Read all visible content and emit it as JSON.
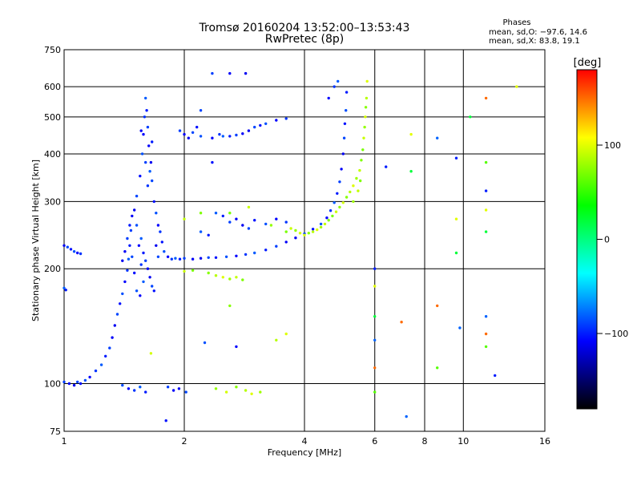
{
  "chart_data": {
    "type": "scatter",
    "title": "Tromsø 20160204 13:52:00–13:53:43",
    "subtitle": "RwPretec (8p)",
    "xlabel": "Frequency [MHz]",
    "ylabel": "Stationary phase Virtual Height [km]",
    "x_scale": "log",
    "y_scale": "log",
    "xlim": [
      1,
      16
    ],
    "ylim": [
      75,
      750
    ],
    "x_ticks": [
      1,
      2,
      4,
      6,
      8,
      10,
      16
    ],
    "y_ticks": [
      75,
      100,
      200,
      300,
      400,
      500,
      600,
      750
    ],
    "grid": true,
    "phase_stats": {
      "title": "Phases",
      "line1": "mean, sd,O: −97.6, 14.6",
      "line2": "mean, sd,X:  83.8, 19.1"
    },
    "colorbar": {
      "label": "[deg]",
      "range": [
        -180,
        180
      ],
      "ticks": [
        100,
        0,
        -100
      ],
      "tick_labels": [
        "100",
        "0",
        "−100"
      ],
      "colors": [
        "#ff0000",
        "#ffff00",
        "#00ff00",
        "#00ffff",
        "#0000ff",
        "#000000"
      ]
    },
    "series": [
      {
        "mode": "O",
        "phase_mean": -97.6,
        "points": [
          [
            1.0,
            230
          ],
          [
            1.02,
            228
          ],
          [
            1.04,
            225
          ],
          [
            1.06,
            222
          ],
          [
            1.08,
            220
          ],
          [
            1.1,
            219
          ],
          [
            1.0,
            178
          ],
          [
            1.01,
            176
          ],
          [
            1.0,
            101
          ],
          [
            1.03,
            100
          ],
          [
            1.06,
            99
          ],
          [
            1.08,
            101
          ],
          [
            1.1,
            100
          ],
          [
            1.13,
            102
          ],
          [
            1.16,
            104
          ],
          [
            1.2,
            108
          ],
          [
            1.24,
            112
          ],
          [
            1.27,
            118
          ],
          [
            1.3,
            124
          ],
          [
            1.32,
            132
          ],
          [
            1.34,
            142
          ],
          [
            1.36,
            152
          ],
          [
            1.38,
            162
          ],
          [
            1.4,
            172
          ],
          [
            1.42,
            185
          ],
          [
            1.44,
            198
          ],
          [
            1.45,
            212
          ],
          [
            1.46,
            230
          ],
          [
            1.47,
            252
          ],
          [
            1.48,
            275
          ],
          [
            1.5,
            285
          ],
          [
            1.52,
            310
          ],
          [
            1.55,
            350
          ],
          [
            1.57,
            400
          ],
          [
            1.58,
            450
          ],
          [
            1.59,
            500
          ],
          [
            1.6,
            560
          ],
          [
            1.61,
            520
          ],
          [
            1.62,
            470
          ],
          [
            1.63,
            420
          ],
          [
            1.65,
            380
          ],
          [
            1.66,
            340
          ],
          [
            1.68,
            300
          ],
          [
            1.7,
            280
          ],
          [
            1.72,
            260
          ],
          [
            1.74,
            250
          ],
          [
            1.56,
            240
          ],
          [
            1.58,
            220
          ],
          [
            1.6,
            210
          ],
          [
            1.62,
            200
          ],
          [
            1.64,
            190
          ],
          [
            1.66,
            180
          ],
          [
            1.68,
            175
          ],
          [
            1.52,
            260
          ],
          [
            1.54,
            230
          ],
          [
            1.56,
            205
          ],
          [
            1.58,
            185
          ],
          [
            1.46,
            260
          ],
          [
            1.44,
            240
          ],
          [
            1.42,
            222
          ],
          [
            1.4,
            210
          ],
          [
            1.48,
            215
          ],
          [
            1.5,
            195
          ],
          [
            1.52,
            175
          ],
          [
            1.55,
            170
          ],
          [
            1.62,
            330
          ],
          [
            1.64,
            360
          ],
          [
            1.66,
            430
          ],
          [
            1.6,
            380
          ],
          [
            1.56,
            460
          ],
          [
            1.7,
            230
          ],
          [
            1.72,
            215
          ],
          [
            1.76,
            235
          ],
          [
            1.78,
            222
          ],
          [
            1.82,
            215
          ],
          [
            1.86,
            212
          ],
          [
            1.9,
            213
          ],
          [
            1.95,
            212
          ],
          [
            2.0,
            213
          ],
          [
            2.1,
            212
          ],
          [
            2.2,
            213
          ],
          [
            2.3,
            214
          ],
          [
            2.4,
            214
          ],
          [
            2.55,
            215
          ],
          [
            2.7,
            216
          ],
          [
            2.85,
            218
          ],
          [
            3.0,
            220
          ],
          [
            3.2,
            224
          ],
          [
            3.4,
            229
          ],
          [
            3.6,
            235
          ],
          [
            3.8,
            241
          ],
          [
            4.0,
            247
          ],
          [
            4.2,
            254
          ],
          [
            4.4,
            262
          ],
          [
            4.55,
            272
          ],
          [
            4.65,
            284
          ],
          [
            4.75,
            298
          ],
          [
            4.83,
            315
          ],
          [
            4.9,
            338
          ],
          [
            4.95,
            365
          ],
          [
            5.0,
            400
          ],
          [
            5.03,
            440
          ],
          [
            5.05,
            480
          ],
          [
            5.08,
            520
          ],
          [
            4.6,
            560
          ],
          [
            4.75,
            600
          ],
          [
            4.85,
            620
          ],
          [
            5.1,
            580
          ],
          [
            1.95,
            460
          ],
          [
            2.0,
            450
          ],
          [
            2.05,
            440
          ],
          [
            2.1,
            455
          ],
          [
            2.15,
            470
          ],
          [
            2.2,
            445
          ],
          [
            2.35,
            440
          ],
          [
            2.45,
            450
          ],
          [
            2.5,
            445
          ],
          [
            2.6,
            445
          ],
          [
            2.7,
            448
          ],
          [
            2.8,
            452
          ],
          [
            2.9,
            460
          ],
          [
            3.0,
            470
          ],
          [
            3.1,
            475
          ],
          [
            3.2,
            480
          ],
          [
            3.4,
            490
          ],
          [
            3.6,
            495
          ],
          [
            2.4,
            280
          ],
          [
            2.5,
            275
          ],
          [
            2.6,
            265
          ],
          [
            2.7,
            270
          ],
          [
            2.8,
            260
          ],
          [
            2.9,
            255
          ],
          [
            3.0,
            268
          ],
          [
            3.2,
            262
          ],
          [
            3.4,
            270
          ],
          [
            3.6,
            265
          ],
          [
            2.2,
            250
          ],
          [
            2.3,
            245
          ],
          [
            2.35,
            650
          ],
          [
            2.6,
            650
          ],
          [
            2.85,
            650
          ],
          [
            2.2,
            520
          ],
          [
            2.35,
            380
          ],
          [
            1.4,
            99
          ],
          [
            1.45,
            97
          ],
          [
            1.5,
            96
          ],
          [
            1.55,
            98
          ],
          [
            1.6,
            95
          ],
          [
            1.82,
            98
          ],
          [
            1.88,
            96
          ],
          [
            1.94,
            97
          ],
          [
            2.02,
            95
          ],
          [
            1.8,
            80
          ],
          [
            2.25,
            128
          ],
          [
            2.7,
            125
          ]
        ]
      },
      {
        "mode": "X",
        "phase_mean": 83.8,
        "points": [
          [
            4.0,
            245
          ],
          [
            4.1,
            248
          ],
          [
            4.2,
            250
          ],
          [
            4.3,
            253
          ],
          [
            4.4,
            257
          ],
          [
            4.5,
            262
          ],
          [
            4.6,
            268
          ],
          [
            4.7,
            275
          ],
          [
            4.8,
            282
          ],
          [
            4.9,
            290
          ],
          [
            5.0,
            298
          ],
          [
            5.1,
            308
          ],
          [
            5.2,
            318
          ],
          [
            5.3,
            330
          ],
          [
            5.4,
            345
          ],
          [
            5.5,
            362
          ],
          [
            5.55,
            385
          ],
          [
            5.6,
            410
          ],
          [
            5.63,
            440
          ],
          [
            5.66,
            470
          ],
          [
            5.68,
            500
          ],
          [
            5.7,
            530
          ],
          [
            5.72,
            560
          ],
          [
            5.74,
            620
          ],
          [
            5.3,
            300
          ],
          [
            5.45,
            320
          ],
          [
            5.52,
            340
          ],
          [
            3.6,
            250
          ],
          [
            3.7,
            255
          ],
          [
            3.8,
            252
          ],
          [
            3.9,
            248
          ],
          [
            2.3,
            195
          ],
          [
            2.4,
            192
          ],
          [
            2.5,
            190
          ],
          [
            2.6,
            188
          ],
          [
            2.7,
            190
          ],
          [
            2.8,
            187
          ],
          [
            2.1,
            198
          ],
          [
            2.0,
            197
          ],
          [
            2.4,
            97
          ],
          [
            2.55,
            95
          ],
          [
            2.7,
            98
          ],
          [
            2.85,
            96
          ],
          [
            2.95,
            94
          ],
          [
            3.1,
            95
          ],
          [
            2.0,
            270
          ],
          [
            2.2,
            280
          ],
          [
            2.6,
            280
          ],
          [
            2.9,
            290
          ],
          [
            3.3,
            260
          ],
          [
            1.65,
            120
          ],
          [
            2.6,
            160
          ],
          [
            3.4,
            130
          ],
          [
            3.6,
            135
          ]
        ]
      },
      {
        "mode": "other",
        "points": [
          [
            6.0,
            200
          ],
          [
            6.0,
            180
          ],
          [
            6.0,
            150
          ],
          [
            6.0,
            130
          ],
          [
            6.0,
            110
          ],
          [
            6.0,
            95
          ],
          [
            6.4,
            370
          ],
          [
            7.4,
            450
          ],
          [
            7.4,
            360
          ],
          [
            8.6,
            440
          ],
          [
            8.6,
            160
          ],
          [
            8.6,
            110
          ],
          [
            9.6,
            390
          ],
          [
            9.6,
            270
          ],
          [
            9.6,
            220
          ],
          [
            9.8,
            140
          ],
          [
            11.4,
            560
          ],
          [
            11.4,
            380
          ],
          [
            11.4,
            320
          ],
          [
            11.4,
            285
          ],
          [
            11.4,
            250
          ],
          [
            11.4,
            150
          ],
          [
            11.4,
            135
          ],
          [
            11.4,
            125
          ],
          [
            12.0,
            105
          ],
          [
            13.6,
            600
          ],
          [
            10.4,
            500
          ],
          [
            7.2,
            82
          ],
          [
            7.0,
            145
          ]
        ]
      }
    ]
  }
}
